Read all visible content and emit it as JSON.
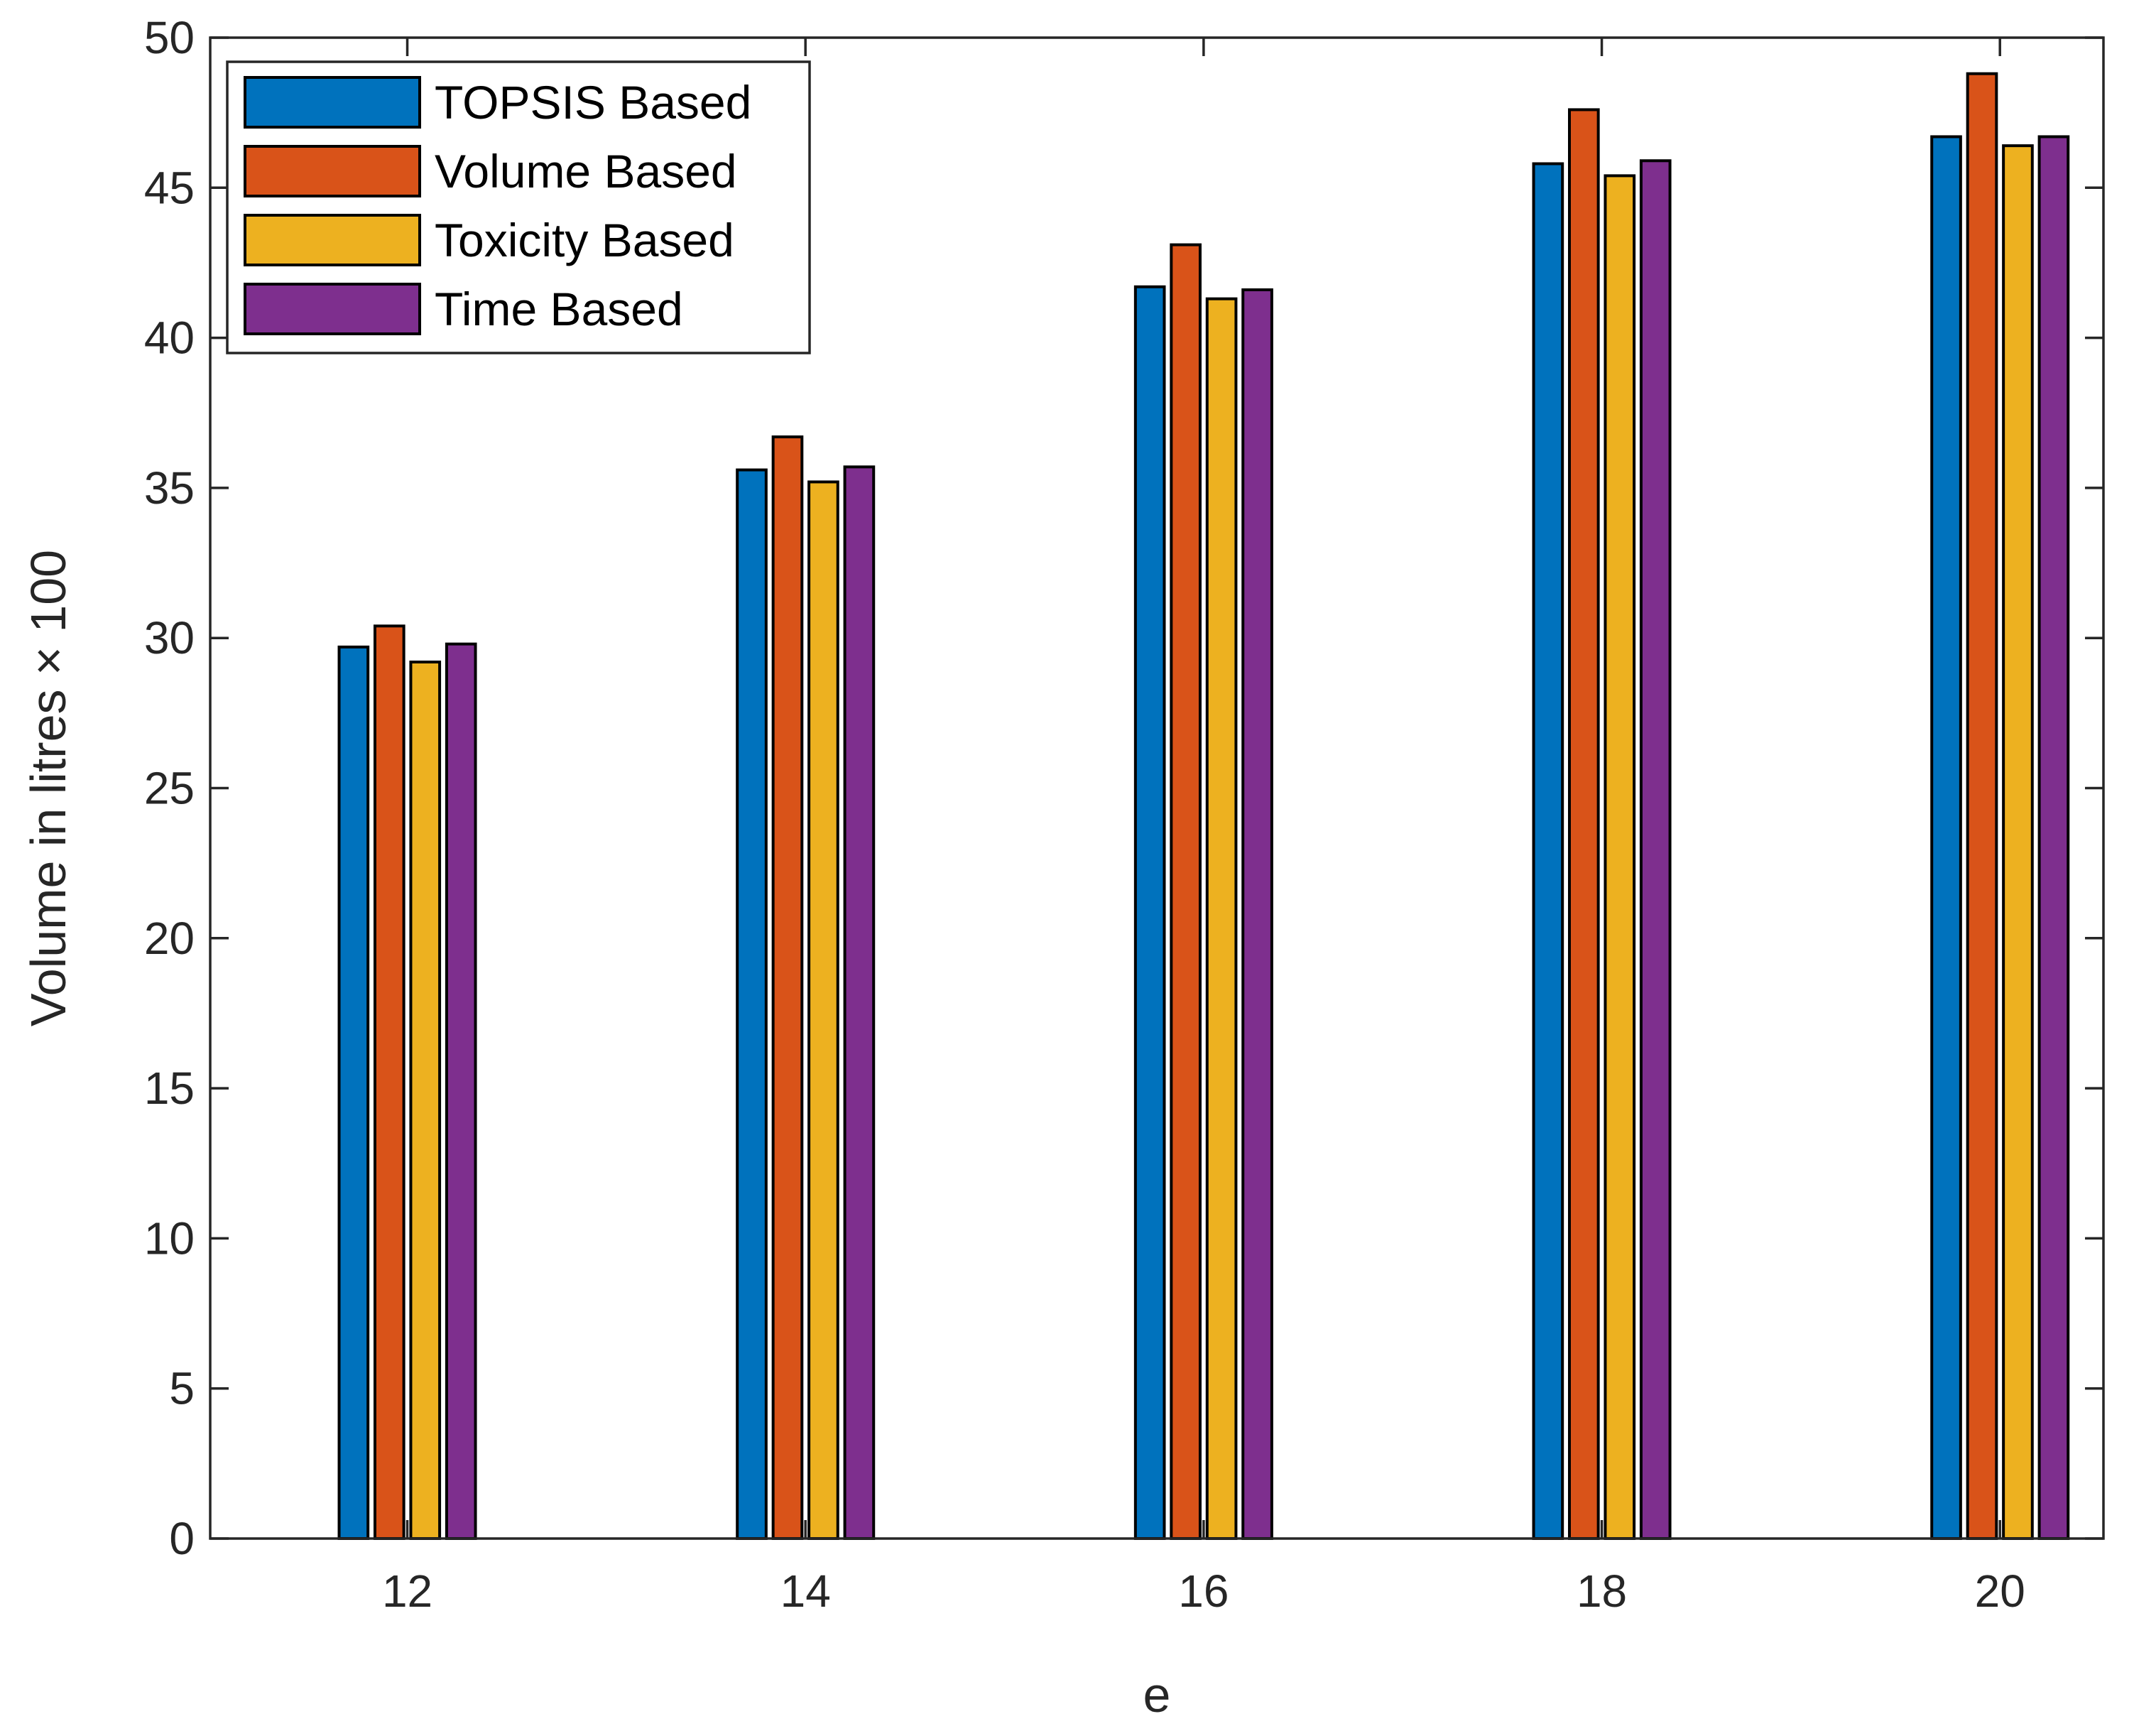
{
  "chart_data": {
    "type": "bar",
    "title": "",
    "xlabel": "e",
    "ylabel": "Volume in litres × 100",
    "categories": [
      "12",
      "14",
      "16",
      "18",
      "20"
    ],
    "ylim": [
      0,
      50
    ],
    "yticks": [
      "0",
      "5",
      "10",
      "15",
      "20",
      "25",
      "30",
      "35",
      "40",
      "45",
      "50"
    ],
    "grid": false,
    "legend_position": "top-left",
    "series": [
      {
        "name": "TOPSIS Based",
        "color": "#0072BD",
        "values": [
          29.7,
          35.6,
          41.7,
          45.8,
          46.7
        ]
      },
      {
        "name": "Volume Based",
        "color": "#D95319",
        "values": [
          30.4,
          36.7,
          43.1,
          47.6,
          48.8
        ]
      },
      {
        "name": "Toxicity Based",
        "color": "#EDB120",
        "values": [
          29.2,
          35.2,
          41.3,
          45.4,
          46.4
        ]
      },
      {
        "name": "Time Based",
        "color": "#7E2F8E",
        "values": [
          29.8,
          35.7,
          41.6,
          45.9,
          46.7
        ]
      }
    ]
  }
}
